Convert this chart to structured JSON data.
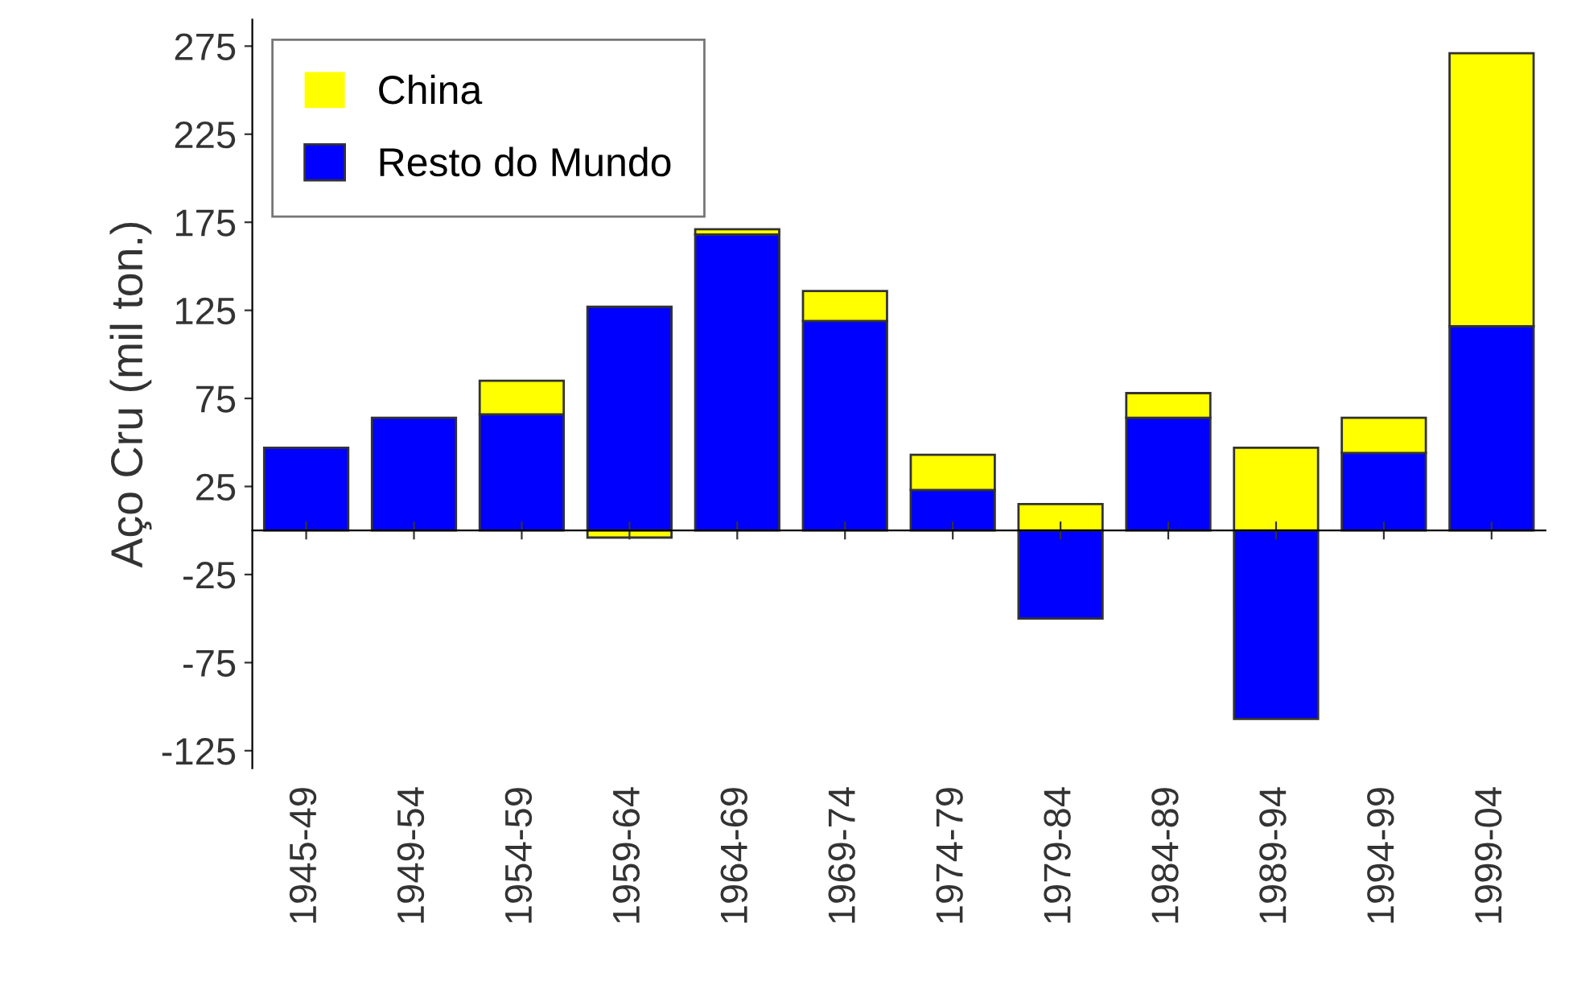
{
  "chart_data": {
    "type": "bar",
    "stacked": true,
    "ylabel": "Aço Cru (mil ton.)",
    "categories": [
      "1945-49",
      "1949-54",
      "1954-59",
      "1959-64",
      "1964-69",
      "1969-74",
      "1974-79",
      "1979-84",
      "1984-89",
      "1989-94",
      "1994-99",
      "1999-04"
    ],
    "series": [
      {
        "name": "Resto do Mundo",
        "color": "#0000ff",
        "values": [
          47,
          64,
          66,
          127,
          168,
          119,
          23,
          -50,
          64,
          -107,
          44,
          116
        ]
      },
      {
        "name": "China",
        "color": "#ffff00",
        "values": [
          0,
          0,
          19,
          -4,
          3,
          17,
          20,
          15,
          14,
          47,
          20,
          155
        ]
      }
    ],
    "ylim": [
      -135,
      290
    ],
    "yticks": [
      -125,
      -75,
      -25,
      25,
      75,
      125,
      175,
      225,
      275
    ],
    "grid": false,
    "legend": "top left"
  }
}
